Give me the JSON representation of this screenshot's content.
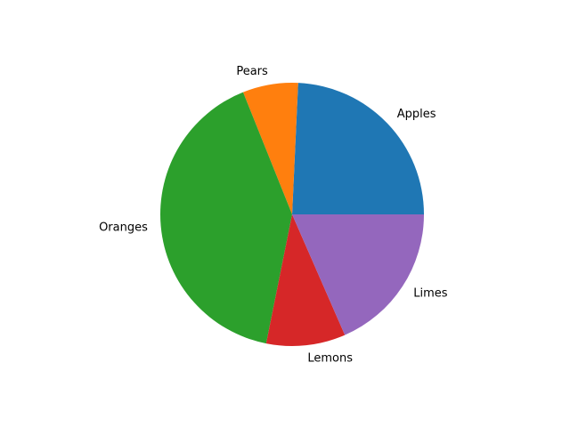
{
  "chart_data": {
    "type": "pie",
    "labels": [
      "Apples",
      "Pears",
      "Oranges",
      "Lemons",
      "Limes"
    ],
    "values": [
      25,
      7,
      42,
      10,
      19
    ],
    "colors": [
      "#1f77b4",
      "#ff7f0e",
      "#2ca02c",
      "#d62728",
      "#9467bd"
    ],
    "start_angle": 0,
    "direction": "counterclockwise",
    "title": ""
  }
}
